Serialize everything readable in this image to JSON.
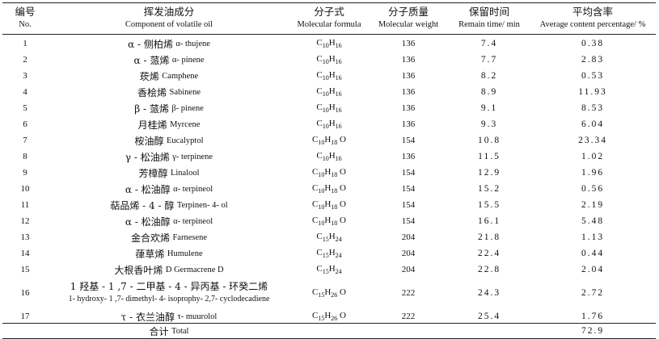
{
  "header": {
    "col_no_cn": "编号",
    "col_no_en": "No.",
    "col_component_cn": "挥发油成分",
    "col_component_en": "Component of volatile oil",
    "col_formula_cn": "分子式",
    "col_formula_en": "Molecular formula",
    "col_weight_cn": "分子质量",
    "col_weight_en": "Molecular weight",
    "col_time_cn": "保留时间",
    "col_time_en": "Remain time/ min",
    "col_content_cn": "平均含率",
    "col_content_en": "Average content percentage/ %"
  },
  "rows": [
    {
      "no": "1",
      "cn": "α - 侧柏烯",
      "en": "α- thujene",
      "formula": [
        "C",
        "10",
        "H",
        "16",
        ""
      ],
      "mw": "136",
      "rt": "7.4",
      "pct": "0.38"
    },
    {
      "no": "2",
      "cn": "α - 蒎烯",
      "en": "α- pinene",
      "formula": [
        "C",
        "10",
        "H",
        "16",
        ""
      ],
      "mw": "136",
      "rt": "7.7",
      "pct": "2.83"
    },
    {
      "no": "3",
      "cn": "莰烯",
      "en": "Camphene",
      "formula": [
        "C",
        "10",
        "H",
        "16",
        ""
      ],
      "mw": "136",
      "rt": "8.2",
      "pct": "0.53"
    },
    {
      "no": "4",
      "cn": "香桧烯",
      "en": "Sabinene",
      "formula": [
        "C",
        "10",
        "H",
        "16",
        ""
      ],
      "mw": "136",
      "rt": "8.9",
      "pct": "11.93"
    },
    {
      "no": "5",
      "cn": "β - 蒎烯",
      "en": "β- pinene",
      "formula": [
        "C",
        "10",
        "H",
        "16",
        ""
      ],
      "mw": "136",
      "rt": "9.1",
      "pct": "8.53"
    },
    {
      "no": "6",
      "cn": "月桂烯",
      "en": "Myrcene",
      "formula": [
        "C",
        "10",
        "H",
        "16",
        ""
      ],
      "mw": "136",
      "rt": "9.3",
      "pct": "6.04"
    },
    {
      "no": "7",
      "cn": "桉油醇",
      "en": "Eucalyptol",
      "formula": [
        "C",
        "10",
        "H",
        "18",
        " O"
      ],
      "mw": "154",
      "rt": "10.8",
      "pct": "23.34"
    },
    {
      "no": "8",
      "cn": "γ - 松油烯",
      "en": "γ- terpinene",
      "formula": [
        "C",
        "10",
        "H",
        "16",
        ""
      ],
      "mw": "136",
      "rt": "11.5",
      "pct": "1.02"
    },
    {
      "no": "9",
      "cn": "芳樟醇",
      "en": "Linalool",
      "formula": [
        "C",
        "10",
        "H",
        "18",
        " O"
      ],
      "mw": "154",
      "rt": "12.9",
      "pct": "1.96"
    },
    {
      "no": "10",
      "cn": "α - 松油醇",
      "en": "α- terpineol",
      "formula": [
        "C",
        "10",
        "H",
        "18",
        " O"
      ],
      "mw": "154",
      "rt": "15.2",
      "pct": "0.56"
    },
    {
      "no": "11",
      "cn": "萜品烯 - 4 - 醇",
      "en": "Terpinen- 4- ol",
      "formula": [
        "C",
        "10",
        "H",
        "18",
        " O"
      ],
      "mw": "154",
      "rt": "15.5",
      "pct": "2.19"
    },
    {
      "no": "12",
      "cn": "α - 松油醇",
      "en": "α- terpineol",
      "formula": [
        "C",
        "10",
        "H",
        "18",
        " O"
      ],
      "mw": "154",
      "rt": "16.1",
      "pct": "5.48"
    },
    {
      "no": "13",
      "cn": "金合欢烯",
      "en": "Farnesene",
      "formula": [
        "C",
        "15",
        "H",
        "24",
        ""
      ],
      "mw": "204",
      "rt": "21.8",
      "pct": "1.13"
    },
    {
      "no": "14",
      "cn": "葎草烯",
      "en": "Humulene",
      "formula": [
        "C",
        "15",
        "H",
        "24",
        ""
      ],
      "mw": "204",
      "rt": "22.4",
      "pct": "0.44"
    },
    {
      "no": "15",
      "cn": "大根香叶烯",
      "en": "D Germacrene  D",
      "formula": [
        "C",
        "15",
        "H",
        "24",
        ""
      ],
      "mw": "204",
      "rt": "22.8",
      "pct": "2.04"
    },
    {
      "no": "16",
      "cn": "1 羟基 - 1 ,7 - 二甲基 - 4 - 异丙基 - 环癸二烯",
      "en": "1- hydroxy- 1 ,7- dimethyl- 4- isoprophy-  2,7- cyclodecadiene",
      "formula": [
        "C",
        "15",
        "H",
        "26",
        " O"
      ],
      "mw": "222",
      "rt": "24.3",
      "pct": "2.72"
    },
    {
      "no": "17",
      "cn": "τ - 衣兰油醇",
      "en": "τ- muurolol",
      "formula": [
        "C",
        "15",
        "H",
        "26",
        " O"
      ],
      "mw": "222",
      "rt": "25.4",
      "pct": "1.76"
    }
  ],
  "total": {
    "cn": "合计",
    "en": "Total",
    "pct": "72.9"
  }
}
